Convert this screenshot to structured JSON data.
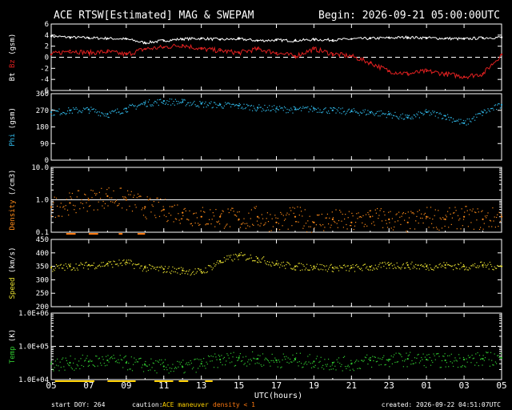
{
  "header": {
    "title": "ACE RTSW[Estimated] MAG & SWEPAM",
    "begin": "Begin: 2026-09-21 05:00:00UTC"
  },
  "footer": {
    "start_doy": "start DOY: 264",
    "caution_label": "caution:",
    "maneuver_label": "ACE maneuver",
    "density_label": "density < 1",
    "created": "created: 2026-09-22 04:51:07UTC"
  },
  "colors": {
    "bt": "#ffffff",
    "bz": "#e02020",
    "phi": "#30b8e8",
    "density": "#ff8c1a",
    "speed": "#e8e030",
    "temp": "#30c830",
    "maneuver": "#ffd200",
    "density_flag": "#ff7a10"
  },
  "chart_data": [
    {
      "type": "line",
      "panel": "mag",
      "ylabel_parts": [
        "Bt",
        "Bz",
        "(gsm)"
      ],
      "ylim": [
        -6,
        6
      ],
      "yticks": [
        "6",
        "4",
        "2",
        "0",
        "-2",
        "-4",
        "-6"
      ],
      "ytick_values": [
        6,
        4,
        2,
        0,
        -2,
        -4,
        -6
      ],
      "ref_line": 0,
      "x_hours": [
        0,
        1,
        2,
        3,
        4,
        5,
        6,
        7,
        8,
        9,
        10,
        11,
        12,
        13,
        14,
        15,
        16,
        17,
        18,
        19,
        20,
        21,
        22,
        23,
        24
      ],
      "series": [
        {
          "key": "bt",
          "values": [
            3.8,
            3.6,
            3.5,
            3.4,
            3.3,
            2.6,
            3.0,
            3.3,
            3.4,
            3.2,
            3.3,
            3.0,
            3.1,
            3.0,
            3.2,
            3.1,
            3.3,
            3.4,
            3.5,
            3.6,
            3.5,
            3.4,
            3.3,
            3.5,
            3.6
          ]
        },
        {
          "key": "bz",
          "values": [
            0.5,
            1.2,
            0.8,
            1.0,
            0.5,
            1.5,
            1.8,
            2.2,
            1.5,
            1.2,
            0.8,
            1.5,
            0.8,
            0.2,
            1.5,
            0.6,
            0.2,
            -1.0,
            -2.5,
            -3.0,
            -2.5,
            -3.0,
            -3.5,
            -3.0,
            0.5
          ]
        }
      ]
    },
    {
      "type": "scatter",
      "panel": "phi",
      "ylabel_parts": [
        "Phi",
        "(gsm)"
      ],
      "ylim": [
        0,
        360
      ],
      "yticks": [
        "360",
        "270",
        "180",
        "90",
        "0"
      ],
      "ytick_values": [
        360,
        270,
        180,
        90,
        0
      ],
      "x_hours": [
        0,
        1,
        2,
        3,
        4,
        5,
        6,
        7,
        8,
        9,
        10,
        11,
        12,
        13,
        14,
        15,
        16,
        17,
        18,
        19,
        20,
        21,
        22,
        23,
        24
      ],
      "series": [
        {
          "key": "phi",
          "values": [
            260,
            270,
            275,
            250,
            280,
            310,
            320,
            315,
            305,
            300,
            295,
            285,
            280,
            275,
            280,
            270,
            265,
            260,
            250,
            230,
            260,
            240,
            200,
            260,
            300
          ]
        }
      ]
    },
    {
      "type": "scatter",
      "panel": "density",
      "ylabel_parts": [
        "Density",
        "(/cm3)"
      ],
      "yscale": "log",
      "ylim": [
        0.1,
        10
      ],
      "yticks": [
        "10.0",
        "1.0",
        "0.1"
      ],
      "ytick_values": [
        10,
        1,
        0.1
      ],
      "ref_line": 1,
      "x_hours": [
        0,
        1,
        2,
        3,
        4,
        5,
        6,
        7,
        8,
        9,
        10,
        11,
        12,
        13,
        14,
        15,
        16,
        17,
        18,
        19,
        20,
        21,
        22,
        23,
        24
      ],
      "series": [
        {
          "key": "density",
          "values": [
            0.6,
            0.8,
            1.0,
            1.3,
            1.0,
            0.6,
            0.5,
            0.4,
            0.3,
            0.3,
            0.25,
            0.3,
            0.2,
            0.3,
            0.2,
            0.25,
            0.2,
            0.3,
            0.25,
            0.2,
            0.3,
            0.25,
            0.3,
            0.25,
            0.3
          ]
        }
      ]
    },
    {
      "type": "scatter",
      "panel": "speed",
      "ylabel_parts": [
        "Speed",
        "(km/s)"
      ],
      "ylim": [
        200,
        450
      ],
      "yticks": [
        "450",
        "400",
        "350",
        "300",
        "250",
        "200"
      ],
      "ytick_values": [
        450,
        400,
        350,
        300,
        250,
        200
      ],
      "x_hours": [
        0,
        1,
        2,
        3,
        4,
        5,
        6,
        7,
        8,
        9,
        10,
        11,
        12,
        13,
        14,
        15,
        16,
        17,
        18,
        19,
        20,
        21,
        22,
        23,
        24
      ],
      "series": [
        {
          "key": "speed",
          "values": [
            345,
            350,
            355,
            360,
            365,
            345,
            340,
            335,
            330,
            370,
            390,
            380,
            360,
            350,
            350,
            345,
            345,
            348,
            355,
            355,
            350,
            355,
            350,
            355,
            350
          ]
        }
      ]
    },
    {
      "type": "scatter",
      "panel": "temp",
      "ylabel_parts": [
        "Temp",
        "(K)"
      ],
      "yscale": "log",
      "ylim": [
        10000,
        1000000
      ],
      "yticks": [
        "1.0E+06",
        "1.0E+05",
        "1.0E+04"
      ],
      "ytick_values": [
        1000000,
        100000,
        10000
      ],
      "ref_line": 100000,
      "x_hours": [
        0,
        1,
        2,
        3,
        4,
        5,
        6,
        7,
        8,
        9,
        10,
        11,
        12,
        13,
        14,
        15,
        16,
        17,
        18,
        19,
        20,
        21,
        22,
        23,
        24
      ],
      "series": [
        {
          "key": "temp",
          "values": [
            30000,
            32000,
            35000,
            38000,
            32000,
            28000,
            25000,
            24000,
            30000,
            40000,
            45000,
            42000,
            38000,
            40000,
            35000,
            32000,
            30000,
            38000,
            40000,
            42000,
            40000,
            38000,
            40000,
            42000,
            45000
          ]
        }
      ]
    }
  ],
  "xaxis": {
    "ticks": [
      "05",
      "07",
      "09",
      "11",
      "13",
      "15",
      "17",
      "19",
      "21",
      "23",
      "01",
      "03",
      "05"
    ],
    "tick_hours": [
      0,
      2,
      4,
      6,
      8,
      10,
      12,
      14,
      16,
      18,
      20,
      22,
      24
    ],
    "xlim": [
      0,
      24
    ],
    "label": "UTC(hours)"
  },
  "maneuver_hours": [
    [
      0.2,
      2.3
    ],
    [
      3.0,
      4.5
    ],
    [
      5.5,
      6.5
    ],
    [
      6.8,
      7.3
    ],
    [
      8.2,
      8.6
    ]
  ],
  "density_flag_hours": [
    [
      0.8,
      1.3
    ],
    [
      2.0,
      2.5
    ],
    [
      3.6,
      3.8
    ],
    [
      4.6,
      5.0
    ]
  ]
}
